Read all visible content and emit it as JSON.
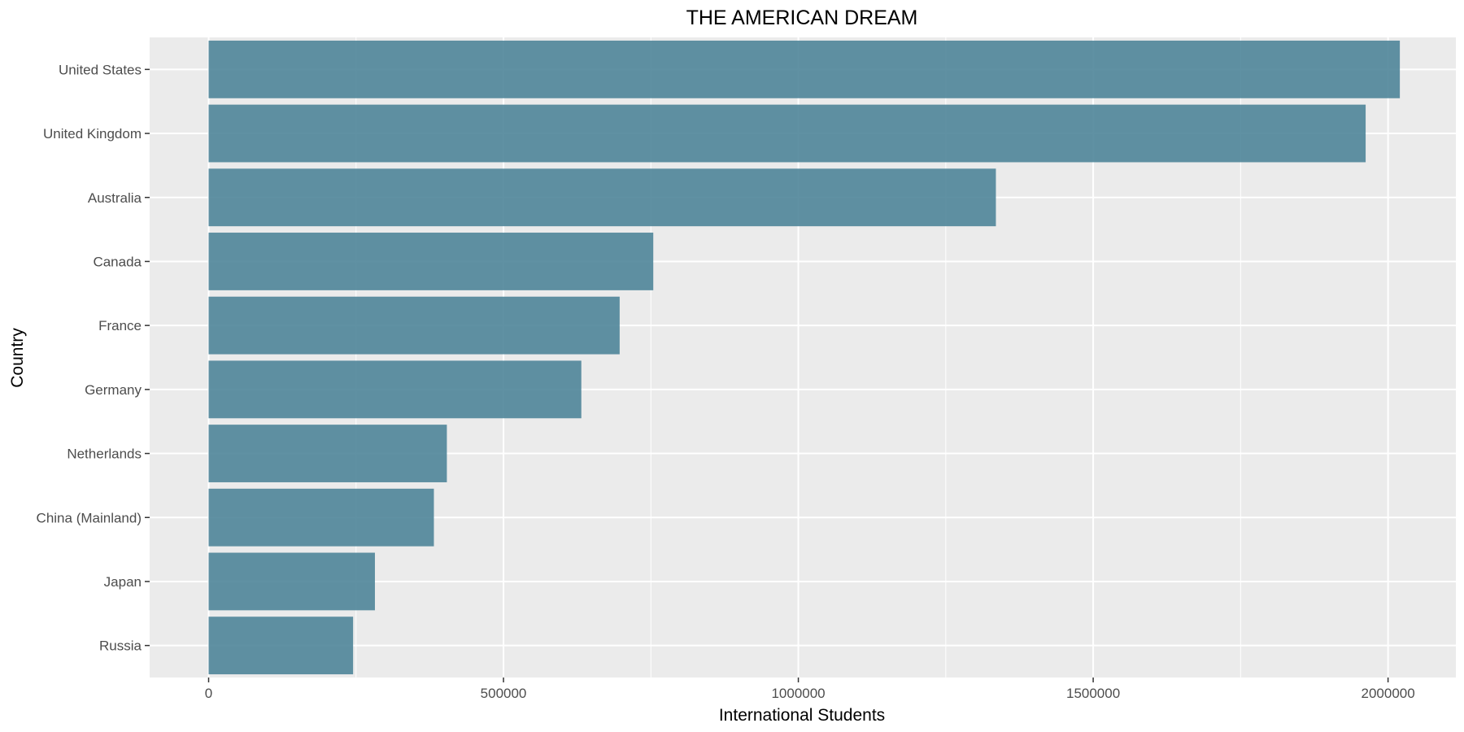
{
  "chart_data": {
    "type": "bar",
    "orientation": "horizontal",
    "title": "THE AMERICAN DREAM",
    "xlabel": "International Students",
    "ylabel": "Country",
    "categories": [
      "United States",
      "United Kingdom",
      "Australia",
      "Canada",
      "France",
      "Germany",
      "Netherlands",
      "China (Mainland)",
      "Japan",
      "Russia"
    ],
    "values": [
      2020000,
      1962000,
      1335000,
      754000,
      697000,
      632000,
      404000,
      382000,
      282000,
      245000
    ],
    "xlim": [
      -100000,
      2115000
    ],
    "xticks": [
      0,
      500000,
      1000000,
      1500000,
      2000000
    ],
    "xtick_labels": [
      "0",
      "500000",
      "1000000",
      "1500000",
      "2000000"
    ],
    "grid": true,
    "legend": "none",
    "colors": {
      "bar": "#4f8599",
      "panel": "#ebebeb",
      "grid": "#ffffff",
      "tick": "#333333"
    }
  }
}
